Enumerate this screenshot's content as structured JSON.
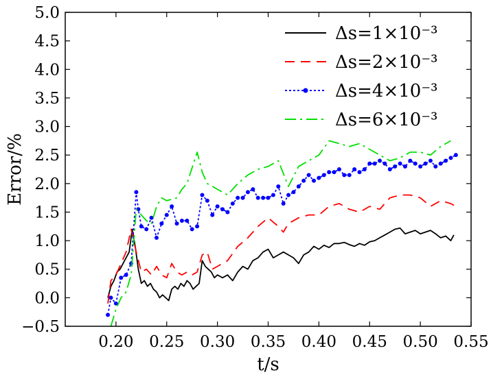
{
  "chart_data": {
    "type": "line",
    "xlabel": "t/s",
    "ylabel": "Error/%",
    "xlim": [
      0.15,
      0.55
    ],
    "ylim": [
      -0.5,
      5.0
    ],
    "xticks": [
      "0.20",
      "0.25",
      "0.30",
      "0.35",
      "0.40",
      "0.45",
      "0.50",
      "0.55"
    ],
    "yticks": [
      "−0.5",
      "0.0",
      "0.5",
      "1.0",
      "1.5",
      "2.0",
      "2.5",
      "3.0",
      "3.5",
      "4.0",
      "4.5",
      "5.0"
    ],
    "grid": false,
    "legend_position": "top-right",
    "series": [
      {
        "name": "Δs=1×10⁻³",
        "color": "#000000",
        "style": "solid",
        "x": [
          0.192,
          0.195,
          0.198,
          0.201,
          0.204,
          0.207,
          0.21,
          0.213,
          0.216,
          0.219,
          0.222,
          0.225,
          0.228,
          0.231,
          0.234,
          0.237,
          0.24,
          0.243,
          0.246,
          0.249,
          0.252,
          0.255,
          0.258,
          0.261,
          0.264,
          0.267,
          0.27,
          0.273,
          0.276,
          0.279,
          0.282,
          0.285,
          0.288,
          0.291,
          0.294,
          0.297,
          0.3,
          0.305,
          0.31,
          0.315,
          0.32,
          0.325,
          0.33,
          0.335,
          0.34,
          0.345,
          0.35,
          0.355,
          0.36,
          0.365,
          0.37,
          0.375,
          0.38,
          0.385,
          0.39,
          0.395,
          0.4,
          0.405,
          0.41,
          0.415,
          0.42,
          0.425,
          0.43,
          0.435,
          0.44,
          0.445,
          0.45,
          0.455,
          0.46,
          0.465,
          0.47,
          0.475,
          0.48,
          0.485,
          0.49,
          0.495,
          0.5,
          0.505,
          0.51,
          0.515,
          0.52,
          0.525,
          0.53,
          0.533
        ],
        "y": [
          0.0,
          0.2,
          0.3,
          0.45,
          0.5,
          0.6,
          0.7,
          0.8,
          1.2,
          0.9,
          0.5,
          0.25,
          0.3,
          0.2,
          0.25,
          0.15,
          0.1,
          0.0,
          0.05,
          0.0,
          -0.05,
          0.15,
          0.2,
          0.15,
          0.25,
          0.2,
          0.3,
          0.25,
          0.15,
          0.2,
          0.25,
          0.65,
          0.55,
          0.5,
          0.45,
          0.35,
          0.4,
          0.35,
          0.4,
          0.3,
          0.45,
          0.55,
          0.5,
          0.65,
          0.7,
          0.8,
          0.85,
          0.7,
          0.75,
          0.8,
          0.75,
          0.7,
          0.6,
          0.75,
          0.8,
          0.9,
          0.85,
          0.92,
          0.88,
          0.95,
          0.95,
          0.97,
          0.93,
          0.9,
          0.95,
          0.92,
          0.98,
          1.0,
          1.05,
          1.1,
          1.15,
          1.2,
          1.22,
          1.12,
          1.15,
          1.18,
          1.12,
          1.15,
          1.18,
          1.12,
          1.05,
          1.08,
          1.0,
          1.1
        ]
      },
      {
        "name": "Δs=2×10⁻³",
        "color": "#ff0000",
        "style": "dashed",
        "x": [
          0.192,
          0.195,
          0.2,
          0.205,
          0.21,
          0.215,
          0.22,
          0.225,
          0.23,
          0.235,
          0.24,
          0.245,
          0.25,
          0.255,
          0.26,
          0.265,
          0.27,
          0.275,
          0.28,
          0.285,
          0.29,
          0.295,
          0.3,
          0.31,
          0.32,
          0.33,
          0.34,
          0.35,
          0.36,
          0.365,
          0.37,
          0.38,
          0.39,
          0.4,
          0.41,
          0.42,
          0.43,
          0.44,
          0.45,
          0.46,
          0.47,
          0.48,
          0.49,
          0.5,
          0.51,
          0.52,
          0.53,
          0.535
        ],
        "y": [
          -0.1,
          0.3,
          0.4,
          0.6,
          0.8,
          1.2,
          0.8,
          0.45,
          0.5,
          0.4,
          0.55,
          0.4,
          0.35,
          0.6,
          0.45,
          0.4,
          0.45,
          0.4,
          0.45,
          0.75,
          0.8,
          0.5,
          0.55,
          0.65,
          0.9,
          1.05,
          1.25,
          1.4,
          1.25,
          1.15,
          1.3,
          1.4,
          1.45,
          1.45,
          1.6,
          1.65,
          1.55,
          1.5,
          1.6,
          1.55,
          1.75,
          1.8,
          1.8,
          1.75,
          1.6,
          1.7,
          1.65,
          1.6
        ]
      },
      {
        "name": "Δs=4×10⁻³",
        "color": "#0000ff",
        "style": "dotted-markers",
        "x": [
          0.192,
          0.195,
          0.2,
          0.205,
          0.21,
          0.215,
          0.22,
          0.222,
          0.225,
          0.23,
          0.235,
          0.24,
          0.245,
          0.25,
          0.255,
          0.26,
          0.265,
          0.27,
          0.275,
          0.28,
          0.285,
          0.29,
          0.295,
          0.3,
          0.305,
          0.31,
          0.315,
          0.32,
          0.325,
          0.33,
          0.335,
          0.34,
          0.345,
          0.35,
          0.355,
          0.36,
          0.365,
          0.37,
          0.375,
          0.38,
          0.385,
          0.39,
          0.395,
          0.4,
          0.405,
          0.41,
          0.415,
          0.42,
          0.425,
          0.43,
          0.435,
          0.44,
          0.445,
          0.45,
          0.455,
          0.46,
          0.465,
          0.47,
          0.475,
          0.48,
          0.485,
          0.49,
          0.495,
          0.5,
          0.505,
          0.51,
          0.515,
          0.52,
          0.525,
          0.53,
          0.535
        ],
        "y": [
          -0.3,
          0.0,
          -0.1,
          0.35,
          0.4,
          0.6,
          1.85,
          1.55,
          1.25,
          1.2,
          1.4,
          1.05,
          1.3,
          1.45,
          1.6,
          1.3,
          1.35,
          1.35,
          1.2,
          1.25,
          1.8,
          1.7,
          1.45,
          1.6,
          1.55,
          1.5,
          1.65,
          1.75,
          1.75,
          1.85,
          1.9,
          1.75,
          1.75,
          1.75,
          1.8,
          1.95,
          1.65,
          1.8,
          1.85,
          1.95,
          2.05,
          2.15,
          2.05,
          2.1,
          2.15,
          2.2,
          2.2,
          2.25,
          2.15,
          2.15,
          2.25,
          2.2,
          2.25,
          2.35,
          2.35,
          2.4,
          2.35,
          2.25,
          2.3,
          2.35,
          2.3,
          2.4,
          2.35,
          2.3,
          2.35,
          2.4,
          2.3,
          2.35,
          2.4,
          2.45,
          2.5
        ]
      },
      {
        "name": "Δs=6×10⁻³",
        "color": "#00e000",
        "style": "dashdot",
        "x": [
          0.195,
          0.2,
          0.205,
          0.21,
          0.215,
          0.22,
          0.225,
          0.23,
          0.235,
          0.24,
          0.245,
          0.25,
          0.26,
          0.265,
          0.27,
          0.28,
          0.285,
          0.29,
          0.3,
          0.31,
          0.32,
          0.33,
          0.34,
          0.35,
          0.36,
          0.37,
          0.38,
          0.39,
          0.4,
          0.41,
          0.42,
          0.43,
          0.44,
          0.45,
          0.46,
          0.47,
          0.48,
          0.49,
          0.5,
          0.51,
          0.52,
          0.53
        ],
        "y": [
          -0.5,
          -0.2,
          0.0,
          0.1,
          0.4,
          1.55,
          1.45,
          1.35,
          1.3,
          1.6,
          1.75,
          1.7,
          1.75,
          1.9,
          2.0,
          2.55,
          2.2,
          2.0,
          1.9,
          1.8,
          2.0,
          2.15,
          2.25,
          2.3,
          2.4,
          1.95,
          2.3,
          2.4,
          2.5,
          2.75,
          2.7,
          2.65,
          2.7,
          2.6,
          2.5,
          2.4,
          2.45,
          2.55,
          2.55,
          2.5,
          2.65,
          2.75
        ]
      }
    ]
  }
}
